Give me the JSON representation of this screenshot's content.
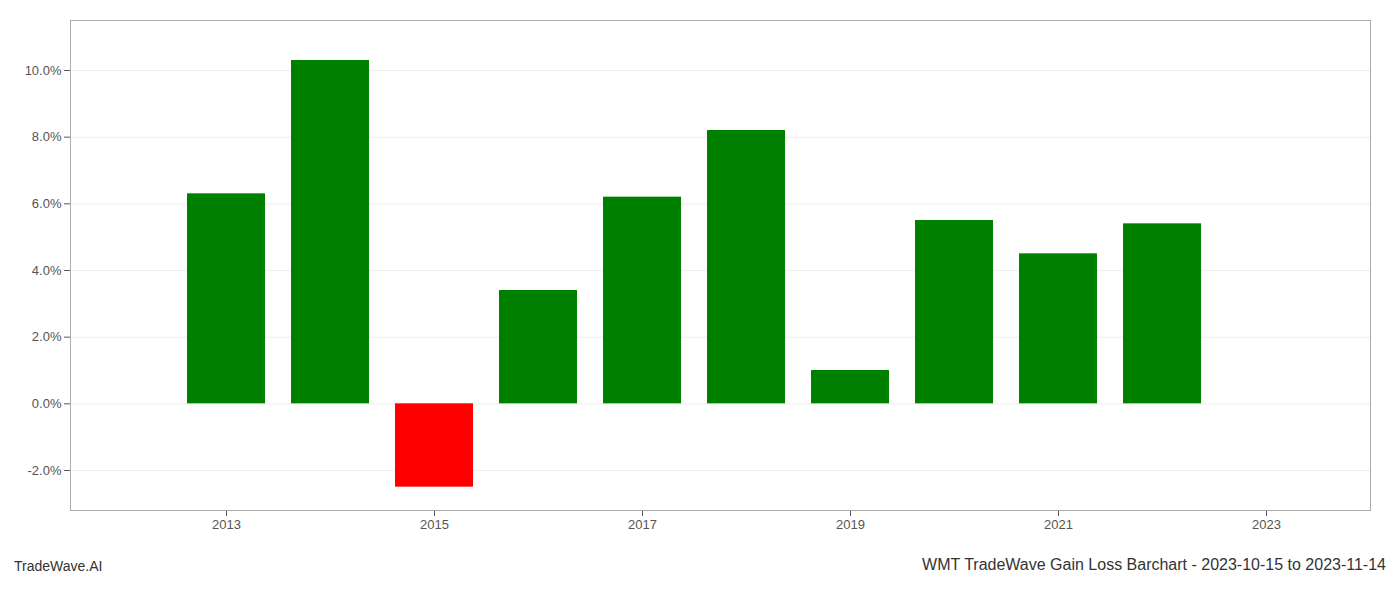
{
  "chart_data": {
    "type": "bar",
    "title": "WMT TradeWave Gain Loss Barchart - 2023-10-15 to 2023-11-14",
    "annotations": [
      "TradeWave.AI"
    ],
    "x": [
      2013,
      2014,
      2015,
      2016,
      2017,
      2018,
      2019,
      2020,
      2021,
      2022
    ],
    "values": [
      0.063,
      0.103,
      -0.025,
      0.034,
      0.062,
      0.082,
      0.01,
      0.055,
      0.045,
      0.054
    ],
    "colors": [
      "#008000",
      "#008000",
      "#ff0000",
      "#008000",
      "#008000",
      "#008000",
      "#008000",
      "#008000",
      "#008000",
      "#008000"
    ],
    "xlim": [
      2011.5,
      2024.0
    ],
    "xticks": [
      2013,
      2015,
      2017,
      2019,
      2021,
      2023
    ],
    "ylim": [
      -0.032,
      0.115
    ],
    "yticks": [
      {
        "value": -0.02,
        "label": "-2.0%"
      },
      {
        "value": 0.0,
        "label": "0.0%"
      },
      {
        "value": 0.02,
        "label": "2.0%"
      },
      {
        "value": 0.04,
        "label": "4.0%"
      },
      {
        "value": 0.06,
        "label": "6.0%"
      },
      {
        "value": 0.08,
        "label": "8.0%"
      },
      {
        "value": 0.1,
        "label": "10.0%"
      }
    ],
    "grid": true
  }
}
